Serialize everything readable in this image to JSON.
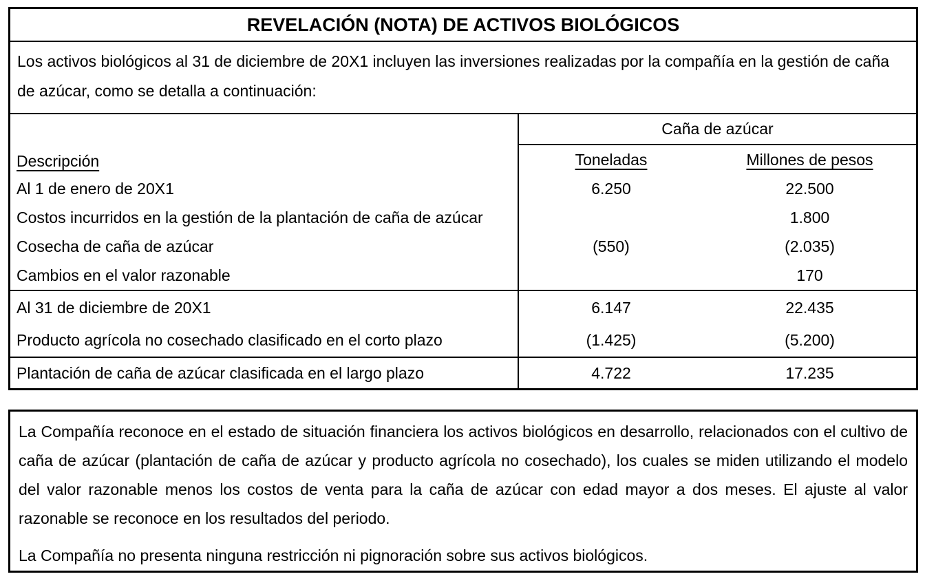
{
  "document": {
    "title": "REVELACIÓN (NOTA) DE ACTIVOS BIOLÓGICOS",
    "intro": "Los activos biológicos al 31 de diciembre de 20X1 incluyen las inversiones realizadas por la compañía en la gestión de caña de azúcar, como se detalla a continuación:"
  },
  "table": {
    "group_header": "Caña de azúcar",
    "columns": {
      "description": "Descripción",
      "tons": "Toneladas",
      "pesos": "Millones de pesos"
    },
    "rows": [
      {
        "label": "Al 1 de enero de 20X1",
        "tons": "6.250",
        "pesos": "22.500"
      },
      {
        "label": "Costos incurridos en la gestión de la plantación de caña de azúcar",
        "tons": "",
        "pesos": "1.800"
      },
      {
        "label": "Cosecha de caña de azúcar",
        "tons": "(550)",
        "pesos": "(2.035)"
      },
      {
        "label": "Cambios en el valor razonable",
        "tons": "",
        "pesos": "170"
      },
      {
        "label": "Al 31 de diciembre de 20X1",
        "tons": "6.147",
        "pesos": "22.435"
      },
      {
        "label": "Producto agrícola no cosechado clasificado en el corto plazo",
        "tons": "(1.425)",
        "pesos": "(5.200)"
      },
      {
        "label": "Plantación de caña de azúcar clasificada en el largo plazo",
        "tons": "4.722",
        "pesos": "17.235"
      }
    ]
  },
  "notes": {
    "paragraph_1": "La Compañía reconoce en el estado de situación financiera los activos biológicos en desarrollo, relacionados con el cultivo de caña de azúcar (plantación de caña de azúcar y producto agrícola no cosechado), los cuales se miden utilizando el modelo del valor razonable menos los costos de venta para la caña de azúcar con edad mayor a dos meses. El ajuste al valor razonable se reconoce en los resultados del periodo.",
    "paragraph_2": "La Compañía no presenta ninguna restricción ni pignoración sobre sus activos biológicos."
  },
  "colors": {
    "text": "#000000",
    "border": "#000000",
    "background": "#ffffff"
  }
}
